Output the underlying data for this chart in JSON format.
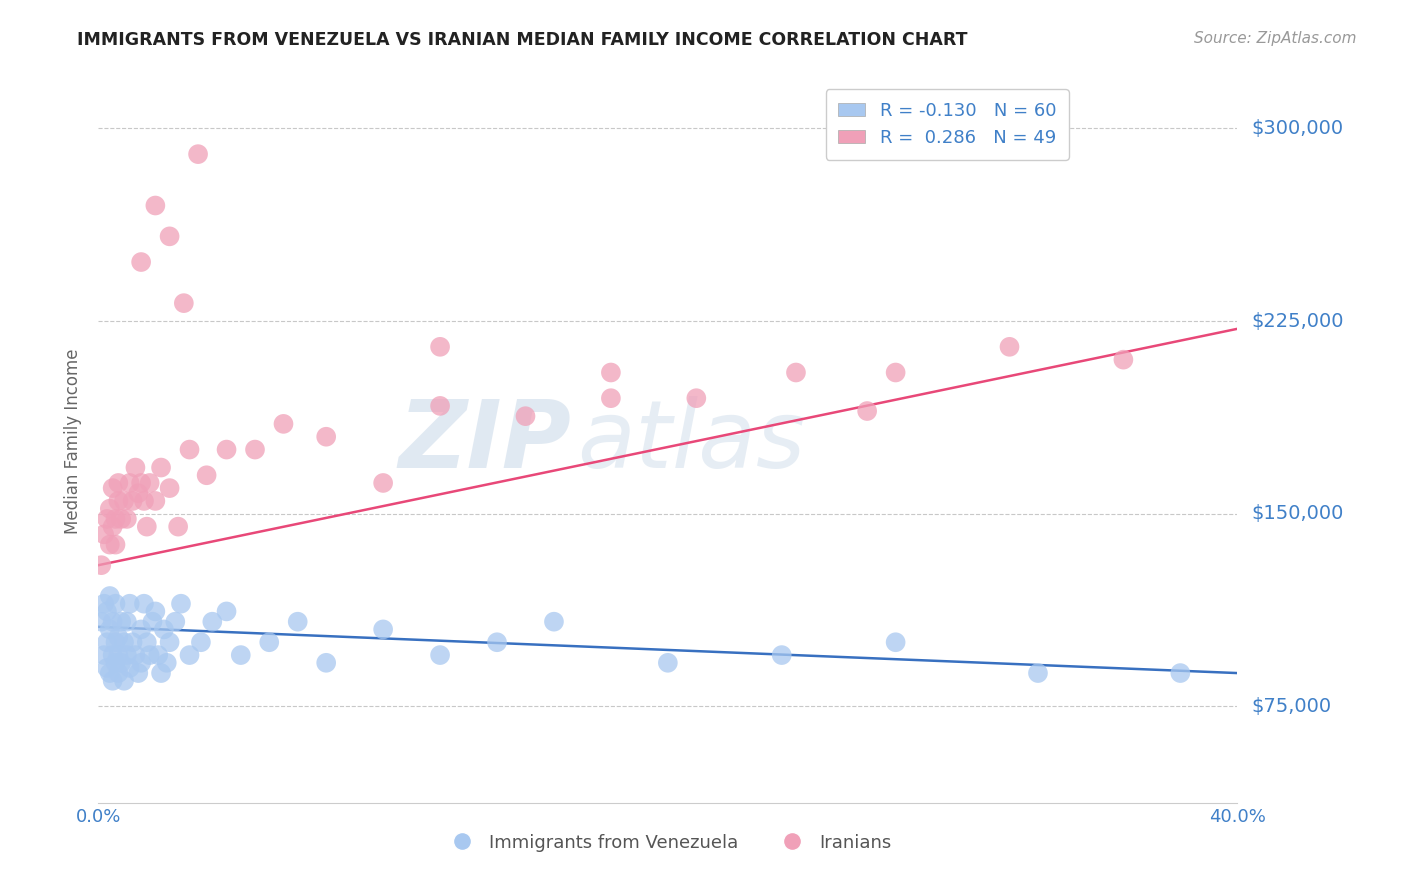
{
  "title": "IMMIGRANTS FROM VENEZUELA VS IRANIAN MEDIAN FAMILY INCOME CORRELATION CHART",
  "source": "Source: ZipAtlas.com",
  "ylabel": "Median Family Income",
  "x_min": 0.0,
  "x_max": 0.4,
  "y_min": 37500,
  "y_max": 318750,
  "y_ticks": [
    75000,
    150000,
    225000,
    300000
  ],
  "y_tick_labels": [
    "$75,000",
    "$150,000",
    "$225,000",
    "$300,000"
  ],
  "x_ticks": [
    0.0,
    0.05,
    0.1,
    0.15,
    0.2,
    0.25,
    0.3,
    0.35,
    0.4
  ],
  "x_tick_labels": [
    "0.0%",
    "",
    "",
    "",
    "",
    "",
    "",
    "",
    "40.0%"
  ],
  "watermark_zip": "ZIP",
  "watermark_atlas": "atlas",
  "blue_color": "#A8C8F0",
  "pink_color": "#F0A0B8",
  "blue_line_color": "#3870C0",
  "pink_line_color": "#E84878",
  "axis_label_color": "#4080C8",
  "legend_text_color": "#4080C8",
  "R_blue": "-0.130",
  "N_blue": "60",
  "R_pink": "0.286",
  "N_pink": "49",
  "series_blue_label": "Immigrants from Venezuela",
  "series_pink_label": "Iranians",
  "blue_x": [
    0.001,
    0.002,
    0.002,
    0.003,
    0.003,
    0.003,
    0.004,
    0.004,
    0.004,
    0.005,
    0.005,
    0.005,
    0.006,
    0.006,
    0.006,
    0.007,
    0.007,
    0.007,
    0.008,
    0.008,
    0.009,
    0.009,
    0.01,
    0.01,
    0.011,
    0.011,
    0.012,
    0.013,
    0.014,
    0.015,
    0.015,
    0.016,
    0.017,
    0.018,
    0.019,
    0.02,
    0.021,
    0.022,
    0.023,
    0.024,
    0.025,
    0.027,
    0.029,
    0.032,
    0.036,
    0.04,
    0.045,
    0.05,
    0.06,
    0.07,
    0.08,
    0.1,
    0.12,
    0.14,
    0.16,
    0.2,
    0.24,
    0.28,
    0.33,
    0.38
  ],
  "blue_y": [
    108000,
    95000,
    115000,
    100000,
    90000,
    112000,
    88000,
    105000,
    118000,
    95000,
    108000,
    85000,
    100000,
    92000,
    115000,
    88000,
    102000,
    95000,
    108000,
    92000,
    85000,
    100000,
    95000,
    108000,
    90000,
    115000,
    100000,
    95000,
    88000,
    105000,
    92000,
    115000,
    100000,
    95000,
    108000,
    112000,
    95000,
    88000,
    105000,
    92000,
    100000,
    108000,
    115000,
    95000,
    100000,
    108000,
    112000,
    95000,
    100000,
    108000,
    92000,
    105000,
    95000,
    100000,
    108000,
    92000,
    95000,
    100000,
    88000,
    88000
  ],
  "pink_x": [
    0.001,
    0.002,
    0.003,
    0.004,
    0.004,
    0.005,
    0.005,
    0.006,
    0.006,
    0.007,
    0.007,
    0.008,
    0.009,
    0.01,
    0.011,
    0.012,
    0.013,
    0.014,
    0.015,
    0.016,
    0.017,
    0.018,
    0.02,
    0.022,
    0.025,
    0.028,
    0.032,
    0.038,
    0.045,
    0.055,
    0.065,
    0.08,
    0.1,
    0.12,
    0.15,
    0.18,
    0.21,
    0.245,
    0.28,
    0.32,
    0.36,
    0.015,
    0.02,
    0.025,
    0.03,
    0.035,
    0.12,
    0.18,
    0.27
  ],
  "pink_y": [
    130000,
    142000,
    148000,
    138000,
    152000,
    145000,
    160000,
    138000,
    148000,
    155000,
    162000,
    148000,
    155000,
    148000,
    162000,
    155000,
    168000,
    158000,
    162000,
    155000,
    145000,
    162000,
    155000,
    168000,
    160000,
    145000,
    175000,
    165000,
    175000,
    175000,
    185000,
    180000,
    162000,
    192000,
    188000,
    195000,
    195000,
    205000,
    205000,
    215000,
    210000,
    248000,
    270000,
    258000,
    232000,
    290000,
    215000,
    205000,
    190000
  ],
  "blue_trend_x0": 0.0,
  "blue_trend_x1": 0.4,
  "blue_trend_y0": 106000,
  "blue_trend_y1": 88000,
  "pink_trend_x0": 0.0,
  "pink_trend_x1": 0.4,
  "pink_trend_y0": 130000,
  "pink_trend_y1": 222000
}
